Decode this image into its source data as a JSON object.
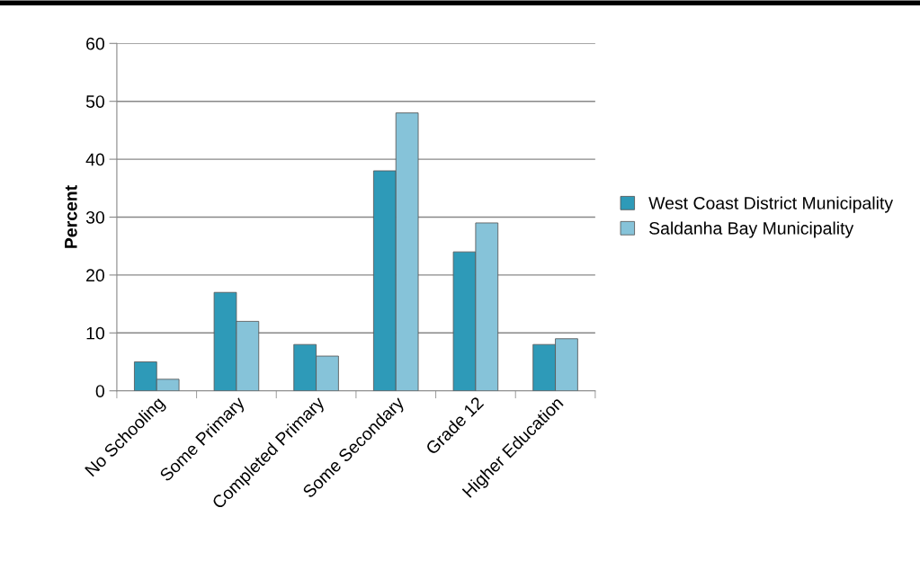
{
  "chart_data": {
    "type": "bar",
    "ylabel": "Percent",
    "categories": [
      "No Schooling",
      "Some Primary",
      "Completed Primary",
      "Some Secondary",
      "Grade 12",
      "Higher Education"
    ],
    "series": [
      {
        "name": "West Coast District Municipality",
        "color": "#2e9ab8",
        "values": [
          5,
          17,
          8,
          38,
          24,
          8
        ]
      },
      {
        "name": "Saldanha Bay Municipality",
        "color": "#86c3d9",
        "values": [
          2,
          12,
          6,
          48,
          29,
          9
        ]
      }
    ],
    "ylim": [
      0,
      60
    ],
    "yticks": [
      0,
      10,
      20,
      30,
      40,
      50,
      60
    ],
    "grid": "y",
    "legend": "right"
  }
}
